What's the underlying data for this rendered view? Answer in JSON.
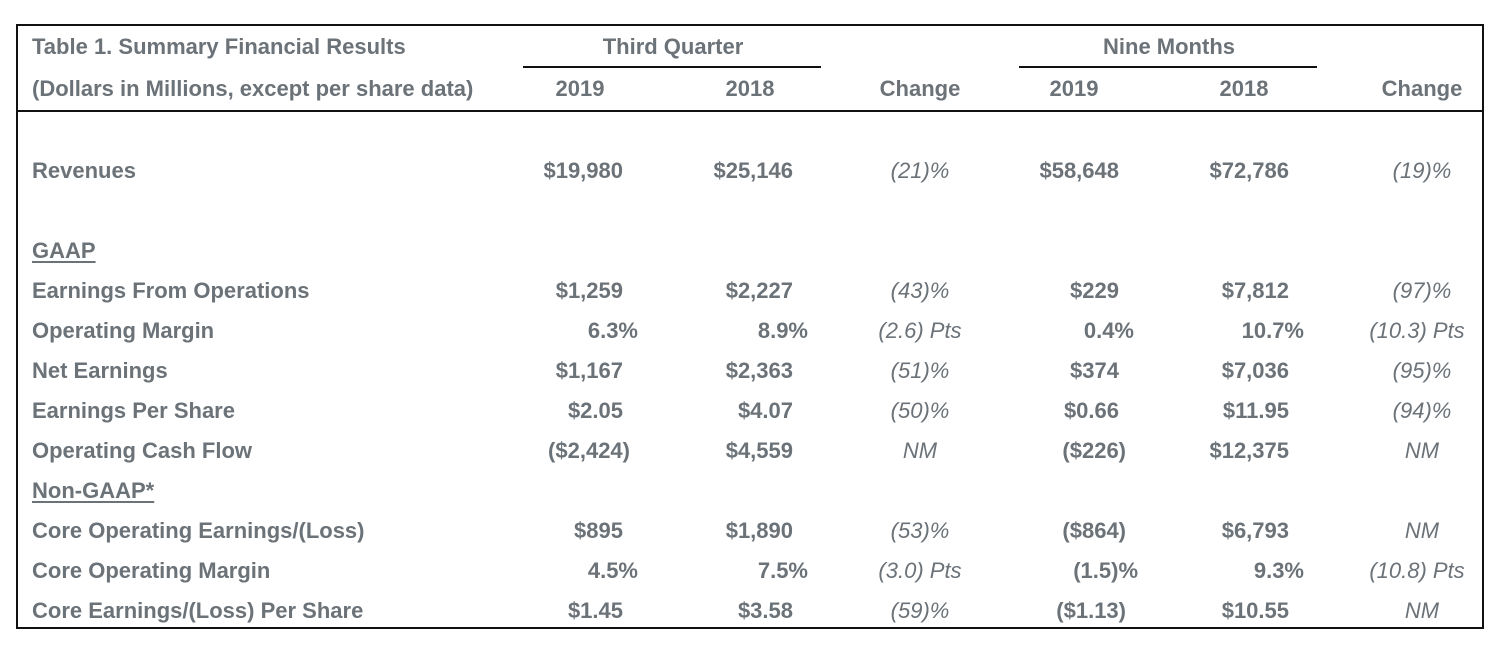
{
  "table": {
    "title": "Table 1. Summary Financial Results",
    "subtitle": "(Dollars in Millions, except per share data)",
    "groups": {
      "third_quarter": "Third Quarter",
      "nine_months": "Nine Months"
    },
    "columns": [
      "2019",
      "2018",
      "Change",
      "2019",
      "2018",
      "Change"
    ],
    "sections": {
      "gaap": "GAAP",
      "non_gaap": "Non-GAAP*"
    },
    "rows": [
      {
        "label": "Revenues",
        "values": [
          "$19,980",
          "$25,146",
          "(21)%",
          "$58,648",
          "$72,786",
          "(19)%"
        ]
      },
      {
        "label": "Earnings From Operations",
        "values": [
          "$1,259",
          "$2,227",
          "(43)%",
          "$229",
          "$7,812",
          "(97)%"
        ]
      },
      {
        "label": "Operating Margin",
        "values": [
          "6.3%",
          "8.9%",
          "(2.6) Pts",
          "0.4%",
          "10.7%",
          "(10.3) Pts"
        ]
      },
      {
        "label": "Net Earnings",
        "values": [
          "$1,167",
          "$2,363",
          "(51)%",
          "$374",
          "$7,036",
          "(95)%"
        ]
      },
      {
        "label": "Earnings Per Share",
        "values": [
          "$2.05",
          "$4.07",
          "(50)%",
          "$0.66",
          "$11.95",
          "(94)%"
        ]
      },
      {
        "label": "Operating Cash Flow",
        "values": [
          "($2,424)",
          "$4,559",
          "NM",
          "($226)",
          "$12,375",
          "NM"
        ]
      },
      {
        "label": "Core Operating Earnings/(Loss)",
        "values": [
          "$895",
          "$1,890",
          "(53)%",
          "($864)",
          "$6,793",
          "NM"
        ]
      },
      {
        "label": "Core Operating Margin",
        "values": [
          "4.5%",
          "7.5%",
          "(3.0) Pts",
          "(1.5)%",
          "9.3%",
          "(10.8) Pts"
        ]
      },
      {
        "label": "Core Earnings/(Loss) Per Share",
        "values": [
          "$1.45",
          "$3.58",
          "(59)%",
          "($1.13)",
          "$10.55",
          "NM"
        ]
      }
    ]
  }
}
